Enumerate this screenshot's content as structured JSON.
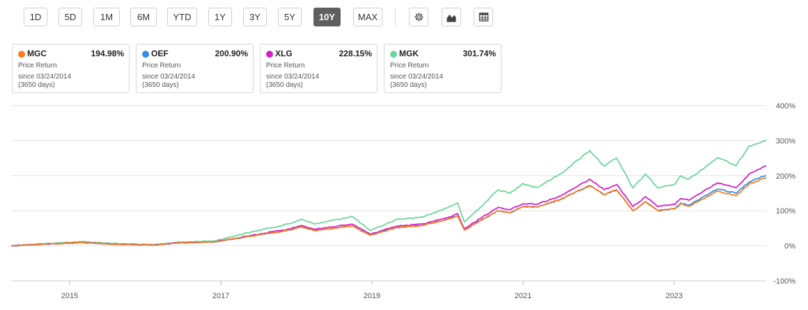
{
  "toolbar": {
    "ranges": [
      "1D",
      "5D",
      "1M",
      "6M",
      "YTD",
      "1Y",
      "3Y",
      "5Y",
      "10Y",
      "MAX"
    ],
    "active_range": "10Y",
    "icons": [
      "gear-icon",
      "chart-type-icon",
      "table-icon"
    ]
  },
  "legend_cards": [
    {
      "ticker": "MGC",
      "pct": "194.98%",
      "metric": "Price Return",
      "since": "since 03/24/2014",
      "days": "(3650 days)",
      "color": "#ff7a1a"
    },
    {
      "ticker": "OEF",
      "pct": "200.90%",
      "metric": "Price Return",
      "since": "since 03/24/2014",
      "days": "(3650 days)",
      "color": "#2f8fe8"
    },
    {
      "ticker": "XLG",
      "pct": "228.15%",
      "metric": "Price Return",
      "since": "since 03/24/2014",
      "days": "(3650 days)",
      "color": "#d21fc8"
    },
    {
      "ticker": "MGK",
      "pct": "301.74%",
      "metric": "Price Return",
      "since": "since 03/24/2014",
      "days": "(3650 days)",
      "color": "#6bd69a"
    }
  ],
  "chart_data": {
    "type": "line",
    "title": "",
    "xlabel": "",
    "ylabel": "",
    "x_range": [
      "2014-03-24",
      "2024-03-21"
    ],
    "ylim": [
      -100,
      400
    ],
    "y_ticks": [
      "400%",
      "300%",
      "200%",
      "100%",
      "0%",
      "-100%"
    ],
    "x_ticks": [
      "2015",
      "2017",
      "2019",
      "2021",
      "2023"
    ],
    "grid": true,
    "y_axis_side": "right",
    "series": [
      {
        "name": "MGK",
        "color": "#6bd69a",
        "x": [
          "2014-03-24",
          "2014-09-01",
          "2015-03-01",
          "2015-08-24",
          "2016-02-11",
          "2016-06-01",
          "2016-12-01",
          "2017-06-01",
          "2017-12-01",
          "2018-01-26",
          "2018-04-01",
          "2018-09-28",
          "2018-12-24",
          "2019-04-30",
          "2019-09-01",
          "2019-12-31",
          "2020-02-19",
          "2020-03-23",
          "2020-06-08",
          "2020-09-02",
          "2020-10-30",
          "2020-12-31",
          "2021-03-08",
          "2021-06-30",
          "2021-11-19",
          "2022-01-27",
          "2022-03-29",
          "2022-06-16",
          "2022-08-16",
          "2022-10-14",
          "2023-01-05",
          "2023-02-02",
          "2023-03-13",
          "2023-07-31",
          "2023-10-27",
          "2023-12-29",
          "2024-03-21"
        ],
        "values": [
          0,
          6,
          12,
          6,
          3,
          10,
          14,
          40,
          63,
          76,
          62,
          84,
          43,
          75,
          82,
          108,
          122,
          68,
          110,
          160,
          150,
          178,
          166,
          205,
          272,
          228,
          250,
          165,
          205,
          165,
          176,
          200,
          190,
          252,
          228,
          285,
          302
        ]
      },
      {
        "name": "XLG",
        "color": "#d21fc8",
        "x": [
          "2014-03-24",
          "2014-09-01",
          "2015-03-01",
          "2015-08-24",
          "2016-02-11",
          "2016-06-01",
          "2016-12-01",
          "2017-06-01",
          "2017-12-01",
          "2018-01-26",
          "2018-04-01",
          "2018-09-28",
          "2018-12-24",
          "2019-04-30",
          "2019-09-01",
          "2019-12-31",
          "2020-02-19",
          "2020-03-23",
          "2020-06-08",
          "2020-09-02",
          "2020-10-30",
          "2020-12-31",
          "2021-03-08",
          "2021-06-30",
          "2021-11-19",
          "2022-01-27",
          "2022-03-29",
          "2022-06-16",
          "2022-08-16",
          "2022-10-14",
          "2023-01-05",
          "2023-02-02",
          "2023-03-13",
          "2023-07-31",
          "2023-10-27",
          "2023-12-29",
          "2024-03-21"
        ],
        "values": [
          0,
          5,
          9,
          4,
          2,
          8,
          11,
          30,
          48,
          58,
          47,
          62,
          33,
          56,
          62,
          80,
          92,
          49,
          78,
          110,
          103,
          120,
          118,
          142,
          190,
          160,
          175,
          112,
          140,
          112,
          118,
          135,
          130,
          180,
          165,
          205,
          228
        ]
      },
      {
        "name": "OEF",
        "color": "#2f8fe8",
        "x": [
          "2014-03-24",
          "2014-09-01",
          "2015-03-01",
          "2015-08-24",
          "2016-02-11",
          "2016-06-01",
          "2016-12-01",
          "2017-06-01",
          "2017-12-01",
          "2018-01-26",
          "2018-04-01",
          "2018-09-28",
          "2018-12-24",
          "2019-04-30",
          "2019-09-01",
          "2019-12-31",
          "2020-02-19",
          "2020-03-23",
          "2020-06-08",
          "2020-09-02",
          "2020-10-30",
          "2020-12-31",
          "2021-03-08",
          "2021-06-30",
          "2021-11-19",
          "2022-01-27",
          "2022-03-29",
          "2022-06-16",
          "2022-08-16",
          "2022-10-14",
          "2023-01-05",
          "2023-02-02",
          "2023-03-13",
          "2023-07-31",
          "2023-10-27",
          "2023-12-29",
          "2024-03-21"
        ],
        "values": [
          0,
          5,
          9,
          4,
          2,
          8,
          11,
          28,
          45,
          54,
          43,
          57,
          30,
          52,
          58,
          75,
          86,
          45,
          72,
          100,
          94,
          112,
          110,
          132,
          172,
          146,
          160,
          100,
          126,
          100,
          106,
          122,
          116,
          162,
          150,
          182,
          201
        ]
      },
      {
        "name": "MGC",
        "color": "#ff7a1a",
        "x": [
          "2014-03-24",
          "2014-09-01",
          "2015-03-01",
          "2015-08-24",
          "2016-02-11",
          "2016-06-01",
          "2016-12-01",
          "2017-06-01",
          "2017-12-01",
          "2018-01-26",
          "2018-04-01",
          "2018-09-28",
          "2018-12-24",
          "2019-04-30",
          "2019-09-01",
          "2019-12-31",
          "2020-02-19",
          "2020-03-23",
          "2020-06-08",
          "2020-09-02",
          "2020-10-30",
          "2020-12-31",
          "2021-03-08",
          "2021-06-30",
          "2021-11-19",
          "2022-01-27",
          "2022-03-29",
          "2022-06-16",
          "2022-08-16",
          "2022-10-14",
          "2023-01-05",
          "2023-02-02",
          "2023-03-13",
          "2023-07-31",
          "2023-10-27",
          "2023-12-29",
          "2024-03-21"
        ],
        "values": [
          0,
          5,
          9,
          4,
          2,
          8,
          11,
          28,
          45,
          54,
          43,
          57,
          30,
          52,
          58,
          75,
          86,
          45,
          72,
          100,
          94,
          112,
          110,
          132,
          172,
          146,
          160,
          100,
          126,
          100,
          106,
          120,
          113,
          156,
          143,
          176,
          195
        ]
      }
    ]
  }
}
